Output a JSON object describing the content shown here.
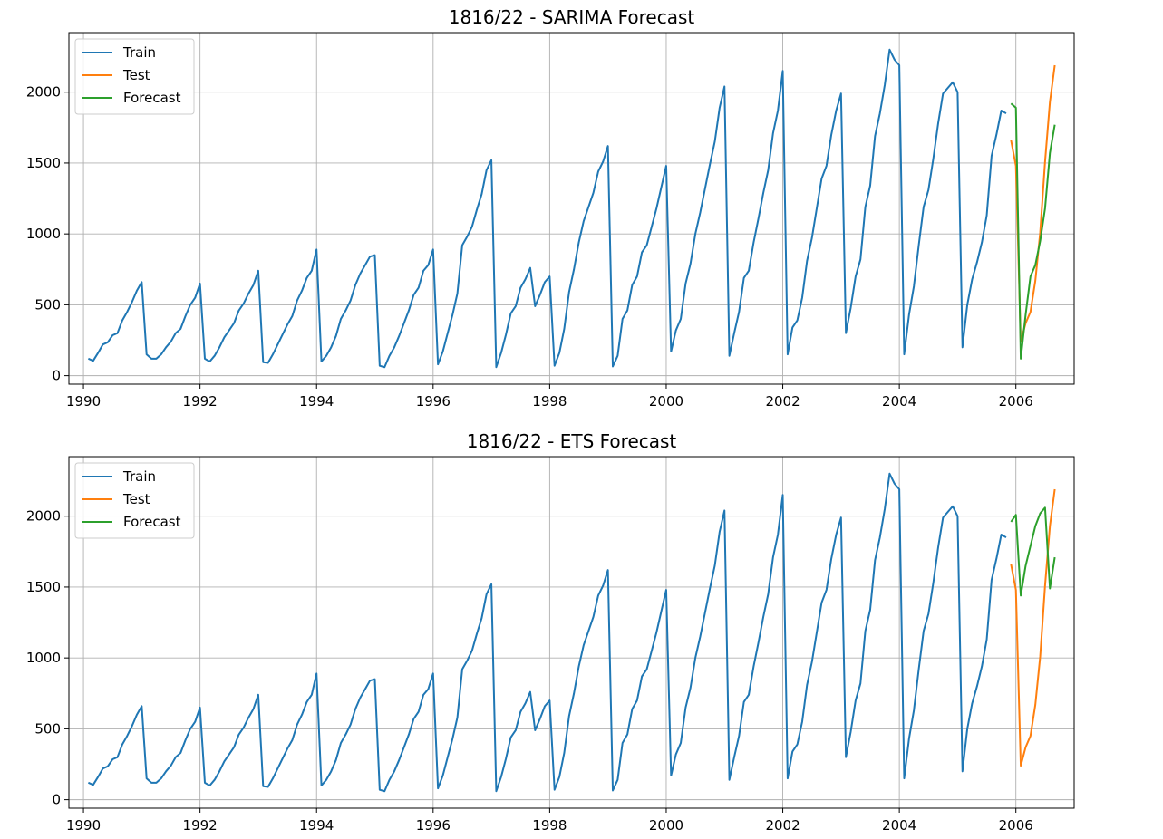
{
  "colors": {
    "train": "#1f77b4",
    "test": "#ff7f0e",
    "forecast": "#2ca02c",
    "grid": "#b0b0b0"
  },
  "chart_data": [
    {
      "type": "line",
      "title": "1816/22 - SARIMA Forecast",
      "xlabel": "",
      "ylabel": "",
      "xlim": [
        1989.75,
        2007.0
      ],
      "ylim": [
        -60,
        2420
      ],
      "xticks": [
        1990,
        1992,
        1994,
        1996,
        1998,
        2000,
        2002,
        2004,
        2006
      ],
      "xtick_labels": [
        "1990",
        "1992",
        "1994",
        "1996",
        "1998",
        "2000",
        "2002",
        "2004",
        "2006"
      ],
      "yticks": [
        0,
        500,
        1000,
        1500,
        2000
      ],
      "ytick_labels": [
        "0",
        "500",
        "1000",
        "1500",
        "2000"
      ],
      "grid": true,
      "legend": {
        "placement": "top-left",
        "entries": [
          "Train",
          "Test",
          "Forecast"
        ]
      },
      "series": [
        {
          "name": "Train",
          "color_key": "train",
          "start": 1990.083,
          "step": 0.0833333,
          "values": [
            120,
            105,
            160,
            220,
            235,
            285,
            300,
            390,
            450,
            520,
            600,
            660,
            150,
            120,
            120,
            150,
            200,
            240,
            300,
            330,
            420,
            500,
            550,
            650,
            120,
            100,
            140,
            200,
            270,
            320,
            370,
            460,
            510,
            580,
            640,
            740,
            95,
            90,
            150,
            220,
            290,
            360,
            420,
            530,
            600,
            690,
            740,
            890,
            100,
            140,
            200,
            280,
            400,
            460,
            530,
            640,
            720,
            780,
            840,
            850,
            70,
            60,
            140,
            200,
            280,
            370,
            460,
            570,
            620,
            740,
            780,
            890,
            80,
            170,
            300,
            430,
            580,
            920,
            980,
            1050,
            1170,
            1280,
            1450,
            1520,
            60,
            160,
            290,
            440,
            490,
            620,
            680,
            760,
            490,
            570,
            660,
            700,
            70,
            160,
            330,
            590,
            750,
            940,
            1090,
            1190,
            1290,
            1440,
            1510,
            1620,
            65,
            140,
            400,
            460,
            640,
            700,
            870,
            920,
            1050,
            1180,
            1330,
            1480,
            170,
            320,
            400,
            650,
            790,
            1000,
            1150,
            1320,
            1490,
            1650,
            1890,
            2040,
            140,
            300,
            450,
            690,
            740,
            940,
            1110,
            1290,
            1450,
            1710,
            1870,
            2150,
            150,
            340,
            390,
            550,
            810,
            970,
            1180,
            1390,
            1480,
            1700,
            1870,
            1990,
            300,
            480,
            700,
            820,
            1190,
            1340,
            1690,
            1850,
            2050,
            2300,
            2230,
            2190,
            150,
            430,
            630,
            920,
            1190,
            1310,
            1530,
            1780,
            1990,
            2030,
            2070,
            2000,
            200,
            500,
            680,
            800,
            940,
            1130,
            1550,
            1700,
            1870,
            1850
          ]
        },
        {
          "name": "Test",
          "color_key": "test",
          "start": 2005.917,
          "step": 0.0833333,
          "values": [
            1660,
            1480,
            240,
            370,
            450,
            670,
            1010,
            1510,
            1930,
            2190
          ]
        },
        {
          "name": "Forecast",
          "color_key": "forecast",
          "start": 2005.917,
          "step": 0.0833333,
          "values": [
            1920,
            1890,
            120,
            430,
            700,
            780,
            950,
            1180,
            1570,
            1770
          ]
        }
      ]
    },
    {
      "type": "line",
      "title": "1816/22 - ETS Forecast",
      "xlabel": "",
      "ylabel": "",
      "xlim": [
        1989.75,
        2007.0
      ],
      "ylim": [
        -60,
        2420
      ],
      "xticks": [
        1990,
        1992,
        1994,
        1996,
        1998,
        2000,
        2002,
        2004,
        2006
      ],
      "xtick_labels": [
        "1990",
        "1992",
        "1994",
        "1996",
        "1998",
        "2000",
        "2002",
        "2004",
        "2006"
      ],
      "yticks": [
        0,
        500,
        1000,
        1500,
        2000
      ],
      "ytick_labels": [
        "0",
        "500",
        "1000",
        "1500",
        "2000"
      ],
      "grid": true,
      "legend": {
        "placement": "top-left",
        "entries": [
          "Train",
          "Test",
          "Forecast"
        ]
      },
      "series": [
        {
          "name": "Train",
          "color_key": "train",
          "start": 1990.083,
          "step": 0.0833333,
          "values": [
            120,
            105,
            160,
            220,
            235,
            285,
            300,
            390,
            450,
            520,
            600,
            660,
            150,
            120,
            120,
            150,
            200,
            240,
            300,
            330,
            420,
            500,
            550,
            650,
            120,
            100,
            140,
            200,
            270,
            320,
            370,
            460,
            510,
            580,
            640,
            740,
            95,
            90,
            150,
            220,
            290,
            360,
            420,
            530,
            600,
            690,
            740,
            890,
            100,
            140,
            200,
            280,
            400,
            460,
            530,
            640,
            720,
            780,
            840,
            850,
            70,
            60,
            140,
            200,
            280,
            370,
            460,
            570,
            620,
            740,
            780,
            890,
            80,
            170,
            300,
            430,
            580,
            920,
            980,
            1050,
            1170,
            1280,
            1450,
            1520,
            60,
            160,
            290,
            440,
            490,
            620,
            680,
            760,
            490,
            570,
            660,
            700,
            70,
            160,
            330,
            590,
            750,
            940,
            1090,
            1190,
            1290,
            1440,
            1510,
            1620,
            65,
            140,
            400,
            460,
            640,
            700,
            870,
            920,
            1050,
            1180,
            1330,
            1480,
            170,
            320,
            400,
            650,
            790,
            1000,
            1150,
            1320,
            1490,
            1650,
            1890,
            2040,
            140,
            300,
            450,
            690,
            740,
            940,
            1110,
            1290,
            1450,
            1710,
            1870,
            2150,
            150,
            340,
            390,
            550,
            810,
            970,
            1180,
            1390,
            1480,
            1700,
            1870,
            1990,
            300,
            480,
            700,
            820,
            1190,
            1340,
            1690,
            1850,
            2050,
            2300,
            2230,
            2190,
            150,
            430,
            630,
            920,
            1190,
            1310,
            1530,
            1780,
            1990,
            2030,
            2070,
            2000,
            200,
            500,
            680,
            800,
            940,
            1130,
            1550,
            1700,
            1870,
            1850
          ]
        },
        {
          "name": "Test",
          "color_key": "test",
          "start": 2005.917,
          "step": 0.0833333,
          "values": [
            1660,
            1480,
            240,
            370,
            450,
            670,
            1010,
            1510,
            1930,
            2190
          ]
        },
        {
          "name": "Forecast",
          "color_key": "forecast",
          "start": 2005.917,
          "step": 0.0833333,
          "values": [
            1960,
            2010,
            1440,
            1650,
            1790,
            1930,
            2020,
            2060,
            1490,
            1710
          ]
        }
      ]
    }
  ]
}
